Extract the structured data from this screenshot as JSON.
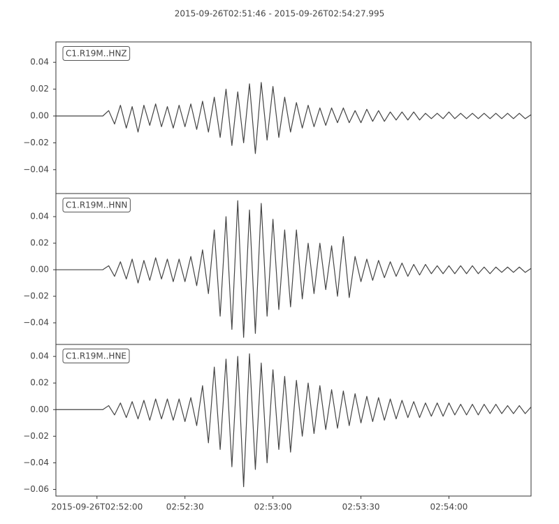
{
  "chart_data": [
    {
      "type": "line",
      "title": "2015-09-26T02:51:46  -  2015-09-26T02:54:27.995",
      "label": "C1.R19M..HNZ",
      "color": "#444444",
      "x": [
        0,
        2,
        4,
        6,
        8,
        10,
        12,
        14,
        16,
        18,
        20,
        22,
        24,
        26,
        28,
        30,
        32,
        34,
        36,
        38,
        40,
        42,
        44,
        46,
        48,
        50,
        52,
        54,
        56,
        58,
        60,
        62,
        64,
        66,
        68,
        70,
        72,
        74,
        76,
        78,
        80,
        82,
        84,
        86,
        88,
        90,
        92,
        94,
        96,
        98,
        100,
        102,
        104,
        106,
        108,
        110,
        112,
        114,
        116,
        118,
        120,
        122,
        124,
        126,
        128,
        130,
        132,
        134,
        136,
        138,
        140,
        142,
        144,
        146,
        148,
        150,
        152,
        154,
        156,
        158,
        160,
        162
      ],
      "values": [
        0,
        0,
        0,
        0,
        0,
        0,
        0,
        0,
        0,
        0.004,
        -0.006,
        0.008,
        -0.009,
        0.007,
        -0.012,
        0.008,
        -0.007,
        0.009,
        -0.008,
        0.007,
        -0.009,
        0.008,
        -0.008,
        0.009,
        -0.01,
        0.011,
        -0.012,
        0.014,
        -0.016,
        0.02,
        -0.022,
        0.018,
        -0.02,
        0.024,
        -0.028,
        0.025,
        -0.018,
        0.022,
        -0.016,
        0.014,
        -0.012,
        0.01,
        -0.009,
        0.008,
        -0.008,
        0.006,
        -0.007,
        0.006,
        -0.005,
        0.006,
        -0.005,
        0.004,
        -0.005,
        0.005,
        -0.004,
        0.004,
        -0.004,
        0.003,
        -0.003,
        0.003,
        -0.003,
        0.003,
        -0.003,
        0.002,
        -0.002,
        0.002,
        -0.002,
        0.003,
        -0.002,
        0.002,
        -0.002,
        0.002,
        -0.002,
        0.002,
        -0.002,
        0.002,
        -0.002,
        0.002,
        -0.002,
        0.002,
        -0.002,
        0.001
      ],
      "xlim": [
        0,
        161.995
      ],
      "ylim": [
        -0.0578,
        0.0552
      ],
      "yticks": [
        0.04,
        0.02,
        {
          "value": 0,
          "label": "0.00"
        },
        {
          "value": -0.02,
          "label": "−0.02"
        },
        {
          "value": -0.04,
          "label": "−0.04"
        }
      ]
    },
    {
      "type": "line",
      "label": "C1.R19M..HNN",
      "color": "#444444",
      "x": [
        0,
        2,
        4,
        6,
        8,
        10,
        12,
        14,
        16,
        18,
        20,
        22,
        24,
        26,
        28,
        30,
        32,
        34,
        36,
        38,
        40,
        42,
        44,
        46,
        48,
        50,
        52,
        54,
        56,
        58,
        60,
        62,
        64,
        66,
        68,
        70,
        72,
        74,
        76,
        78,
        80,
        82,
        84,
        86,
        88,
        90,
        92,
        94,
        96,
        98,
        100,
        102,
        104,
        106,
        108,
        110,
        112,
        114,
        116,
        118,
        120,
        122,
        124,
        126,
        128,
        130,
        132,
        134,
        136,
        138,
        140,
        142,
        144,
        146,
        148,
        150,
        152,
        154,
        156,
        158,
        160,
        162
      ],
      "values": [
        0,
        0,
        0,
        0,
        0,
        0,
        0,
        0,
        0,
        0.003,
        -0.005,
        0.006,
        -0.007,
        0.008,
        -0.01,
        0.007,
        -0.008,
        0.009,
        -0.007,
        0.008,
        -0.009,
        0.008,
        -0.009,
        0.01,
        -0.012,
        0.015,
        -0.018,
        0.03,
        -0.035,
        0.04,
        -0.045,
        0.052,
        -0.051,
        0.045,
        -0.048,
        0.05,
        -0.035,
        0.038,
        -0.03,
        0.03,
        -0.028,
        0.03,
        -0.022,
        0.02,
        -0.018,
        0.02,
        -0.015,
        0.018,
        -0.02,
        0.025,
        -0.021,
        0.01,
        -0.009,
        0.008,
        -0.008,
        0.007,
        -0.006,
        0.006,
        -0.005,
        0.005,
        -0.005,
        0.004,
        -0.004,
        0.004,
        -0.003,
        0.003,
        -0.003,
        0.003,
        -0.003,
        0.003,
        -0.003,
        0.003,
        -0.003,
        0.002,
        -0.003,
        0.002,
        -0.002,
        0.002,
        -0.002,
        0.002,
        -0.002,
        0.001
      ],
      "xlim": [
        0,
        161.995
      ],
      "ylim": [
        -0.0563,
        0.0574
      ],
      "yticks": [
        0.04,
        0.02,
        {
          "value": 0,
          "label": "0.00"
        },
        {
          "value": -0.02,
          "label": "−0.02"
        },
        {
          "value": -0.04,
          "label": "−0.04"
        }
      ]
    },
    {
      "type": "line",
      "label": "C1.R19M..HNE",
      "color": "#444444",
      "x": [
        0,
        2,
        4,
        6,
        8,
        10,
        12,
        14,
        16,
        18,
        20,
        22,
        24,
        26,
        28,
        30,
        32,
        34,
        36,
        38,
        40,
        42,
        44,
        46,
        48,
        50,
        52,
        54,
        56,
        58,
        60,
        62,
        64,
        66,
        68,
        70,
        72,
        74,
        76,
        78,
        80,
        82,
        84,
        86,
        88,
        90,
        92,
        94,
        96,
        98,
        100,
        102,
        104,
        106,
        108,
        110,
        112,
        114,
        116,
        118,
        120,
        122,
        124,
        126,
        128,
        130,
        132,
        134,
        136,
        138,
        140,
        142,
        144,
        146,
        148,
        150,
        152,
        154,
        156,
        158,
        160,
        162
      ],
      "values": [
        0,
        0,
        0,
        0,
        0,
        0,
        0,
        0,
        0,
        0.003,
        -0.004,
        0.005,
        -0.006,
        0.006,
        -0.007,
        0.007,
        -0.008,
        0.008,
        -0.007,
        0.008,
        -0.008,
        0.008,
        -0.009,
        0.009,
        -0.012,
        0.018,
        -0.025,
        0.032,
        -0.03,
        0.038,
        -0.043,
        0.04,
        -0.058,
        0.042,
        -0.045,
        0.035,
        -0.04,
        0.03,
        -0.03,
        0.025,
        -0.032,
        0.022,
        -0.02,
        0.02,
        -0.018,
        0.018,
        -0.015,
        0.015,
        -0.014,
        0.014,
        -0.012,
        0.012,
        -0.01,
        0.01,
        -0.009,
        0.009,
        -0.008,
        0.008,
        -0.007,
        0.007,
        -0.006,
        0.006,
        -0.006,
        0.005,
        -0.005,
        0.005,
        -0.005,
        0.005,
        -0.004,
        0.004,
        -0.004,
        0.004,
        -0.004,
        0.004,
        -0.003,
        0.004,
        -0.003,
        0.003,
        -0.003,
        0.003,
        -0.003,
        0.002
      ],
      "xlim": [
        0,
        161.995
      ],
      "ylim": [
        -0.065,
        0.049
      ],
      "yticks": [
        0.04,
        0.02,
        {
          "value": 0,
          "label": "0.00"
        },
        {
          "value": -0.02,
          "label": "−0.02"
        },
        {
          "value": -0.04,
          "label": "−0.04"
        },
        {
          "value": -0.06,
          "label": "−0.06"
        }
      ],
      "xticks": [
        {
          "value": 14,
          "label": "2015-09-26T02:52:00"
        },
        {
          "value": 44,
          "label": "02:52:30"
        },
        {
          "value": 74,
          "label": "02:53:00"
        },
        {
          "value": 104,
          "label": "02:53:30"
        },
        {
          "value": 134,
          "label": "02:54:00"
        }
      ]
    }
  ]
}
